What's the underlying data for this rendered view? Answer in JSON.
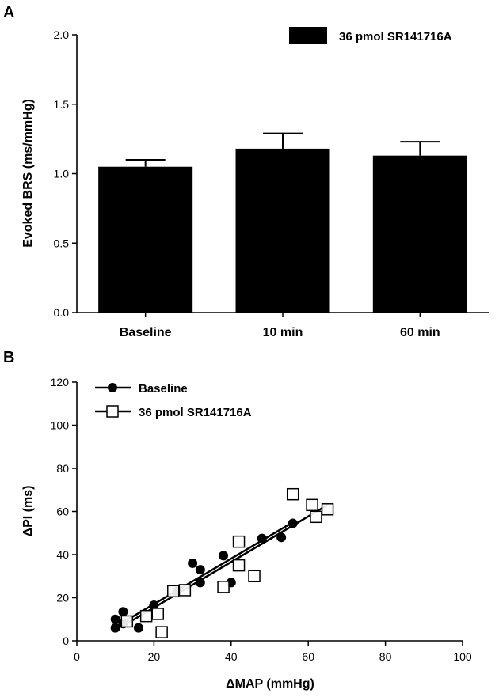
{
  "chart_data": [
    {
      "panel": "A",
      "type": "bar",
      "ylabel": "Evoked BRS (ms/mmHg)",
      "xlabel": "",
      "ylim": [
        0,
        2.0
      ],
      "yticks": [
        "0.0",
        "0.5",
        "1.0",
        "1.5",
        "2.0"
      ],
      "categories": [
        "Baseline",
        "10 min",
        "60 min"
      ],
      "series": [
        {
          "name": "36 pmol SR141716A",
          "color": "#000000",
          "values": [
            1.05,
            1.18,
            1.13
          ],
          "errors": [
            0.05,
            0.11,
            0.1
          ]
        }
      ],
      "legend": "top-right",
      "grid": false
    },
    {
      "panel": "B",
      "type": "scatter",
      "xlabel": "ΔMAP (mmHg)",
      "ylabel": "ΔPI (ms)",
      "xlim": [
        0,
        100
      ],
      "ylim": [
        0,
        120
      ],
      "xticks": [
        "0",
        "20",
        "40",
        "60",
        "80",
        "100"
      ],
      "yticks": [
        "0",
        "20",
        "40",
        "60",
        "80",
        "100",
        "120"
      ],
      "legend": "top-left",
      "grid": false,
      "series": [
        {
          "name": "Baseline",
          "marker": "filled-circle",
          "points": [
            [
              10,
              6
            ],
            [
              10,
              10
            ],
            [
              12,
              8
            ],
            [
              12,
              13.5
            ],
            [
              16,
              6
            ],
            [
              20,
              16.5
            ],
            [
              26,
              23
            ],
            [
              30,
              36
            ],
            [
              32,
              33
            ],
            [
              32,
              27
            ],
            [
              38,
              39.5
            ],
            [
              40,
              27
            ],
            [
              48,
              47.5
            ],
            [
              53,
              48
            ],
            [
              56,
              54.5
            ]
          ],
          "fit": [
            [
              10,
              6.5
            ],
            [
              56,
              55
            ]
          ]
        },
        {
          "name": "36 pmol SR141716A",
          "marker": "open-square",
          "points": [
            [
              13,
              9
            ],
            [
              18,
              11.5
            ],
            [
              21,
              12.5
            ],
            [
              22,
              4
            ],
            [
              25,
              23
            ],
            [
              28,
              23.5
            ],
            [
              38,
              25
            ],
            [
              42,
              35
            ],
            [
              42,
              46
            ],
            [
              46,
              30
            ],
            [
              56,
              68
            ],
            [
              61,
              63
            ],
            [
              62,
              57.5
            ],
            [
              65,
              61
            ]
          ],
          "fit": [
            [
              13,
              8
            ],
            [
              65,
              63
            ]
          ]
        }
      ]
    }
  ]
}
